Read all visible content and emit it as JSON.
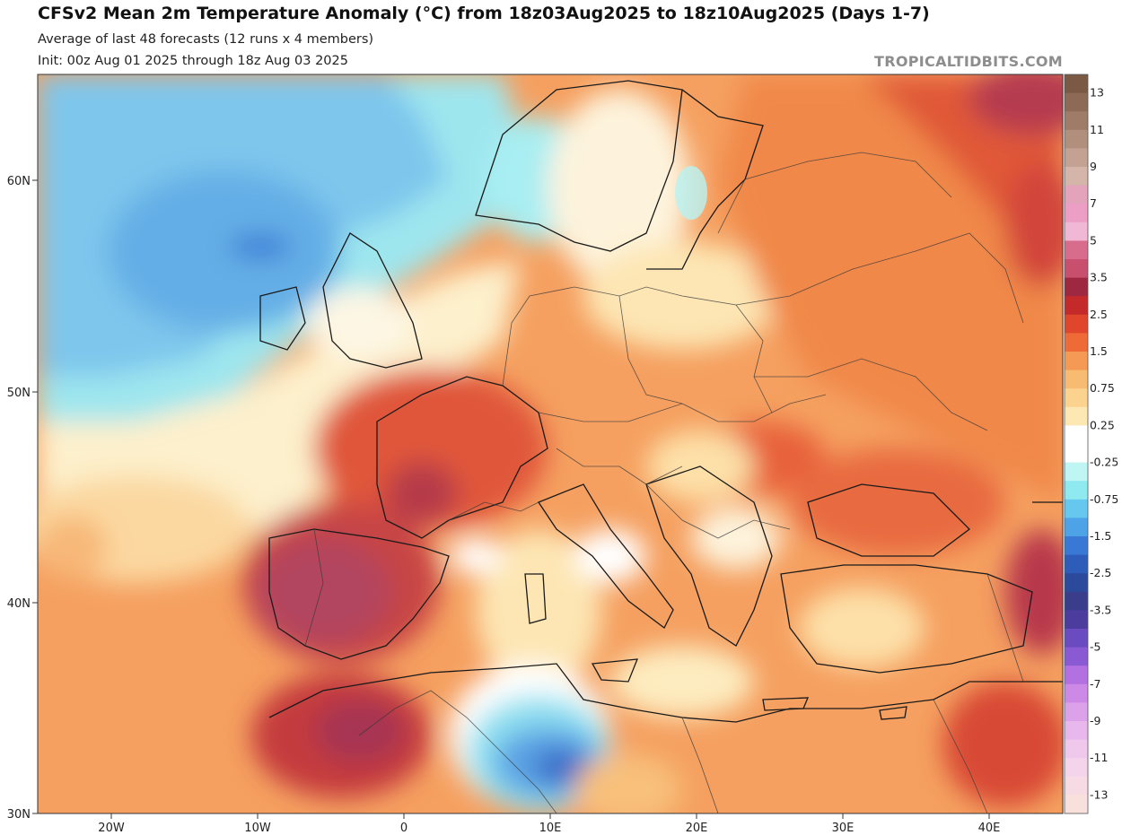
{
  "header": {
    "title": "CFSv2 Mean 2m Temperature Anomaly (°C) from 18z03Aug2025 to 18z10Aug2025 (Days 1-7)",
    "subtitle1": "Average of last 48 forecasts (12 runs x 4 members)",
    "subtitle2": "Init: 00z Aug 01 2025 through 18z Aug 03 2025",
    "brand": "TROPICALTIDBITS.COM"
  },
  "axes": {
    "x_ticks": [
      "20W",
      "10W",
      "0",
      "10E",
      "20E",
      "30E",
      "40E"
    ],
    "y_ticks": [
      "60N",
      "50N",
      "40N",
      "30N"
    ]
  },
  "colorbar": {
    "labels": [
      "13",
      "11",
      "9",
      "7",
      "5",
      "3.5",
      "2.5",
      "1.5",
      "0.75",
      "0.25",
      "-0.25",
      "-0.75",
      "-1.5",
      "-2.5",
      "-3.5",
      "-5",
      "-7",
      "-9",
      "-11",
      "-13"
    ],
    "colors": [
      "#7a5a44",
      "#8c6a55",
      "#9e7c68",
      "#b08f7c",
      "#c3a294",
      "#d5b5aa",
      "#e3a3ba",
      "#ec9ec5",
      "#f0b8d4",
      "#d86c8c",
      "#c8506e",
      "#9e2840",
      "#c42a2a",
      "#e0462c",
      "#ee6a36",
      "#f59a55",
      "#f8bb72",
      "#fbd38f",
      "#fde7b2",
      "#ffffff",
      "#ffffff",
      "#bff6f4",
      "#8feaf0",
      "#66c8ee",
      "#4ea3e6",
      "#3a78d6",
      "#2e5cb9",
      "#2b4a9c",
      "#3a3e8a",
      "#4b3c9e",
      "#6a4bc0",
      "#8a5ad3",
      "#b270e0",
      "#cc8ae6",
      "#dba2e9",
      "#e8b8ec",
      "#efc8ec",
      "#f3d4eb",
      "#f6dbe4",
      "#f8e0dc"
    ]
  },
  "legend_icons": {
    "cb": "colorbar-legend"
  }
}
